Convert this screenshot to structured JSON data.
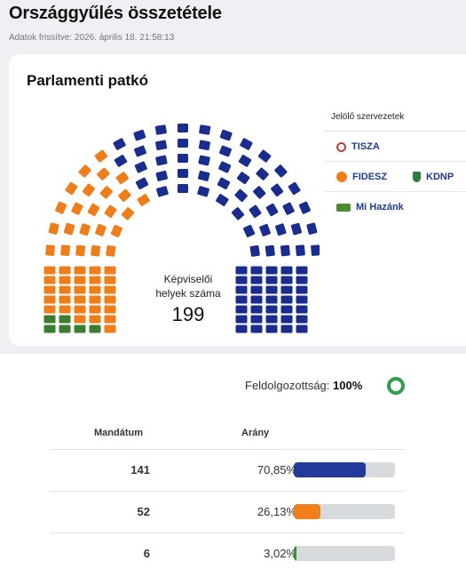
{
  "page": {
    "title": "Országgyűlés összetétele",
    "updated": "Adatok frissítve: 2026. április 18. 21:58:13"
  },
  "chart": {
    "title": "Parlamenti patkó",
    "caption_line1": "Képviselői",
    "caption_line2": "helyek száma",
    "total": "199"
  },
  "legend": {
    "title": "Jelölő szervezetek",
    "items": [
      {
        "label": "TISZA",
        "icon": "tisza-logo-icon",
        "color": "#c83a3a"
      },
      {
        "label": "FIDESZ",
        "icon": "fidesz-logo-icon",
        "color": "#f07f1a"
      },
      {
        "label": "KDNP",
        "icon": "kdnp-logo-icon",
        "color": "#2f7d3b"
      },
      {
        "label": "Mi Hazánk",
        "icon": "mihazank-logo-icon",
        "color": "#4a8d2e"
      }
    ]
  },
  "progress": {
    "label": "Feldolgozottság:",
    "value": "100%"
  },
  "table": {
    "headers": {
      "seats": "Mandátum",
      "share": "Arány"
    },
    "rows": [
      {
        "seats": "141",
        "share": "70,85%",
        "fraction": 0.7085,
        "color": "#243a9b"
      },
      {
        "seats": "52",
        "share": "26,13%",
        "fraction": 0.2613,
        "color": "#f07f1a"
      },
      {
        "seats": "6",
        "share": "3,02%",
        "fraction": 0.0302,
        "color": "#3f8f35"
      }
    ]
  },
  "colors": {
    "tisza": "#1a2d8f",
    "fidesz": "#ef7d1a",
    "mihazank": "#3c7d32"
  }
}
